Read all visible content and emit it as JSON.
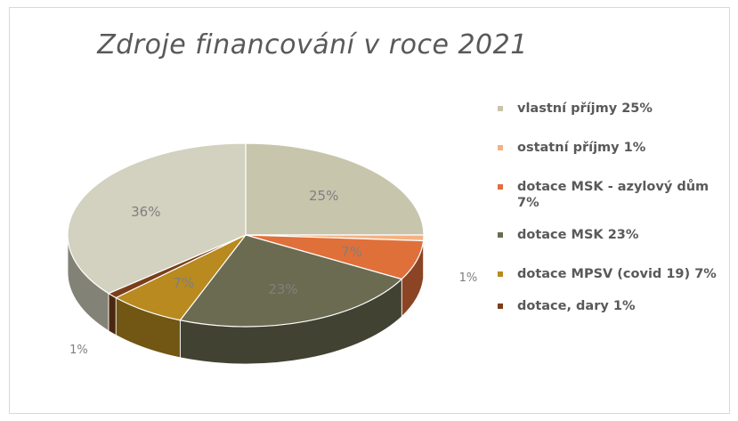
{
  "chart_data": {
    "type": "pie",
    "title": "Zdroje financování v roce 2021",
    "slices": [
      {
        "label": "vlastní příjmy 25%",
        "value": 25,
        "data_label": "25%",
        "color": "#c8c5ad"
      },
      {
        "label": "ostatní příjmy 1%",
        "value": 1,
        "data_label": "1%",
        "color": "#f4b183"
      },
      {
        "label": "dotace MSK - azylový dům 7%",
        "value": 7,
        "data_label": "7%",
        "color": "#e0703a"
      },
      {
        "label": "dotace MSK 23%",
        "value": 23,
        "data_label": "23%",
        "color": "#6b6b52"
      },
      {
        "label": "dotace MPSV (covid 19) 7%",
        "value": 7,
        "data_label": "7%",
        "color": "#b88a1f"
      },
      {
        "label": "dotace, dary 1%",
        "value": 1,
        "data_label": "1%",
        "color": "#7a3f1a"
      },
      {
        "label": "",
        "value": 36,
        "data_label": "36%",
        "color": "#d3d1bf"
      }
    ],
    "legend_placement": "right"
  }
}
